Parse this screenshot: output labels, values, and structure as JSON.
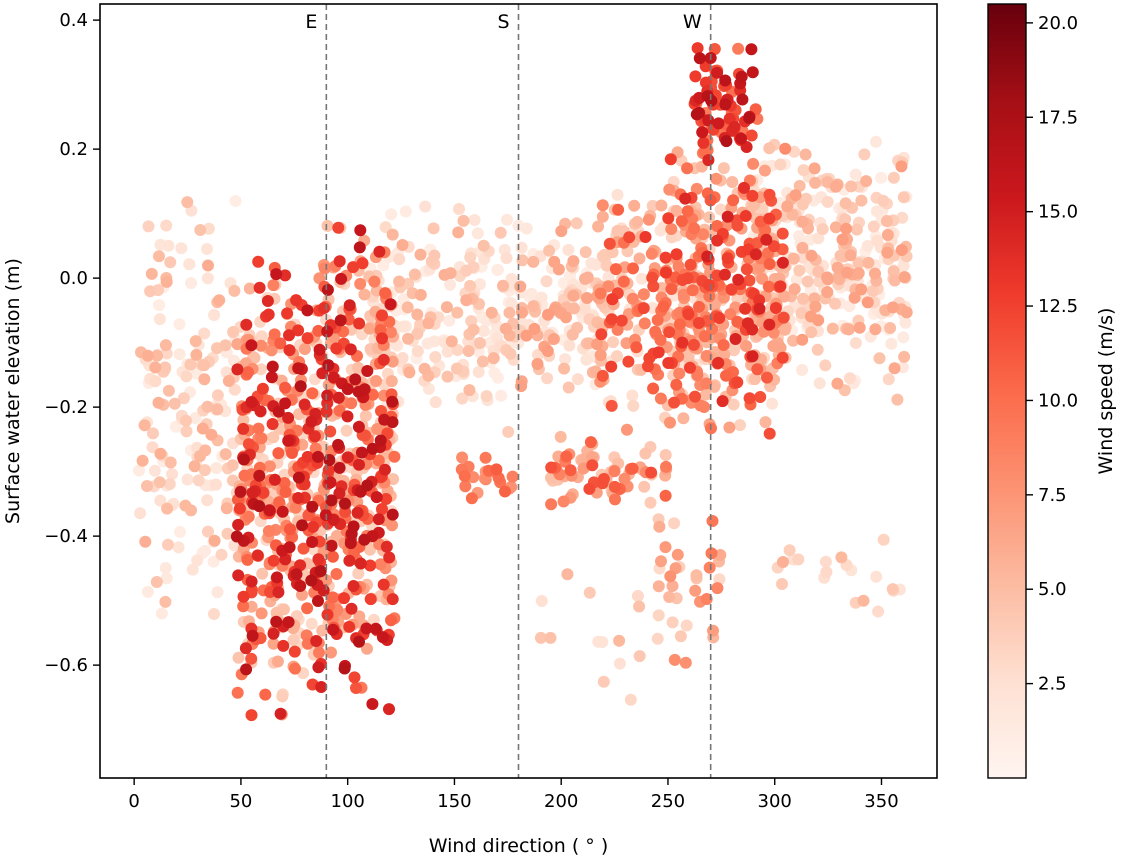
{
  "chart_data": {
    "type": "scatter",
    "xlabel": "Wind direction ( ° )",
    "ylabel": "Surface water elevation (m)",
    "xlim": [
      -16,
      376
    ],
    "ylim": [
      -0.775,
      0.425
    ],
    "xticks": [
      0,
      50,
      100,
      150,
      200,
      250,
      300,
      350
    ],
    "yticks": [
      0.4,
      0.2,
      0.0,
      -0.2,
      -0.4,
      -0.6
    ],
    "ytick_labels": [
      "0.4",
      "0.2",
      "0.0",
      "−0.2",
      "−0.4",
      "−0.6"
    ],
    "grid": false,
    "reference_lines": [
      {
        "x": 90,
        "label": "E",
        "style": "dashed"
      },
      {
        "x": 180,
        "label": "S",
        "style": "dashed"
      },
      {
        "x": 270,
        "label": "W",
        "style": "dashed"
      }
    ],
    "colorbar": {
      "label": "Wind speed (m/s)",
      "colormap": "Reds",
      "range": [
        0,
        20.5
      ],
      "ticks": [
        2.5,
        5.0,
        7.5,
        10.0,
        12.5,
        15.0,
        17.5,
        20.0
      ],
      "tick_labels": [
        "2.5",
        "5.0",
        "7.5",
        "10.0",
        "12.5",
        "15.0",
        "17.5",
        "20.0"
      ]
    },
    "clusters": [
      {
        "x": [
          2,
          48
        ],
        "y": [
          -0.58,
          0.16
        ],
        "n": 170,
        "speed": [
          1,
          6
        ]
      },
      {
        "x": [
          48,
          88
        ],
        "y": [
          -0.7,
          0.06
        ],
        "n": 420,
        "speed": [
          3,
          17
        ]
      },
      {
        "x": [
          88,
          122
        ],
        "y": [
          -0.72,
          0.13
        ],
        "n": 380,
        "speed": [
          3,
          17
        ]
      },
      {
        "x": [
          110,
          180
        ],
        "y": [
          -0.25,
          0.13
        ],
        "n": 200,
        "speed": [
          1,
          6
        ]
      },
      {
        "x": [
          152,
          180
        ],
        "y": [
          -0.35,
          -0.27
        ],
        "n": 22,
        "speed": [
          7,
          11
        ]
      },
      {
        "x": [
          180,
          222
        ],
        "y": [
          -0.2,
          0.11
        ],
        "n": 130,
        "speed": [
          1,
          7
        ]
      },
      {
        "x": [
          195,
          250
        ],
        "y": [
          -0.36,
          -0.24
        ],
        "n": 70,
        "speed": [
          4,
          12
        ]
      },
      {
        "x": [
          218,
          270
        ],
        "y": [
          -0.25,
          0.15
        ],
        "n": 220,
        "speed": [
          2,
          13
        ]
      },
      {
        "x": [
          250,
          305
        ],
        "y": [
          -0.25,
          0.22
        ],
        "n": 330,
        "speed": [
          3,
          15
        ]
      },
      {
        "x": [
          262,
          292
        ],
        "y": [
          0.18,
          0.37
        ],
        "n": 75,
        "speed": [
          9,
          17
        ]
      },
      {
        "x": [
          290,
          362
        ],
        "y": [
          -0.2,
          0.24
        ],
        "n": 330,
        "speed": [
          1,
          7
        ]
      },
      {
        "x": [
          245,
          275
        ],
        "y": [
          -0.62,
          -0.36
        ],
        "n": 35,
        "speed": [
          3,
          11
        ]
      },
      {
        "x": [
          300,
          360
        ],
        "y": [
          -0.54,
          -0.37
        ],
        "n": 20,
        "speed": [
          2,
          6
        ]
      },
      {
        "x": [
          190,
          240
        ],
        "y": [
          -0.68,
          -0.4
        ],
        "n": 14,
        "speed": [
          2,
          6
        ]
      }
    ]
  }
}
